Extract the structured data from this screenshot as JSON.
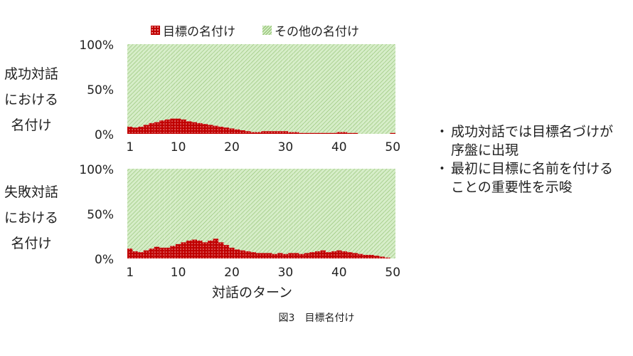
{
  "legend": {
    "goal_label": "目標の名付け",
    "other_label": "その他の名付け"
  },
  "row_labels": {
    "success": [
      "成功対話",
      "における",
      "名付け"
    ],
    "failure": [
      "失敗対話",
      "における",
      "名付け"
    ]
  },
  "notes": [
    [
      "成功対話では目標名づけが",
      "序盤に出現"
    ],
    [
      "最初に目標に名前を付ける",
      "ことの重要性を示唆"
    ]
  ],
  "colors": {
    "goal": "#c00000",
    "goal_dots": "#f0a0a0",
    "other": "#d6edc8",
    "other_hatch": "#8fc06f"
  },
  "caption": "図3　目標名付け",
  "chart_data": [
    {
      "type": "bar",
      "stacked": true,
      "percent": true,
      "x": [
        1,
        2,
        3,
        4,
        5,
        6,
        7,
        8,
        9,
        10,
        11,
        12,
        13,
        14,
        15,
        16,
        17,
        18,
        19,
        20,
        21,
        22,
        23,
        24,
        25,
        26,
        27,
        28,
        29,
        30,
        31,
        32,
        33,
        34,
        35,
        36,
        37,
        38,
        39,
        40,
        41,
        42,
        43,
        44,
        45,
        46,
        47,
        48,
        49,
        50
      ],
      "series": [
        {
          "name": "目標の名付け",
          "values": [
            8,
            7,
            8,
            10,
            12,
            13,
            15,
            16,
            17,
            17,
            16,
            14,
            13,
            12,
            11,
            10,
            9,
            8,
            7,
            6,
            5,
            4,
            3,
            2,
            2,
            3,
            3,
            3,
            3,
            3,
            2,
            2,
            1,
            1,
            1,
            1,
            1,
            1,
            1,
            2,
            2,
            1,
            1,
            0,
            0,
            0,
            0,
            0,
            0,
            1
          ]
        },
        {
          "name": "その他の名付け",
          "values": [
            92,
            93,
            92,
            90,
            88,
            87,
            85,
            84,
            83,
            83,
            84,
            86,
            87,
            88,
            89,
            90,
            91,
            92,
            93,
            94,
            95,
            96,
            97,
            98,
            98,
            97,
            97,
            97,
            97,
            97,
            98,
            98,
            99,
            99,
            99,
            99,
            99,
            99,
            99,
            98,
            98,
            99,
            99,
            100,
            100,
            100,
            100,
            100,
            100,
            99
          ]
        }
      ],
      "ylim": [
        0,
        100
      ],
      "yticks": [
        "100%",
        "50%",
        "0%"
      ],
      "xticks": [
        "1",
        "10",
        "20",
        "30",
        "40",
        "50"
      ],
      "xlabel": "",
      "ylabel": "成功対話における名付け"
    },
    {
      "type": "bar",
      "stacked": true,
      "percent": true,
      "x": [
        1,
        2,
        3,
        4,
        5,
        6,
        7,
        8,
        9,
        10,
        11,
        12,
        13,
        14,
        15,
        16,
        17,
        18,
        19,
        20,
        21,
        22,
        23,
        24,
        25,
        26,
        27,
        28,
        29,
        30,
        31,
        32,
        33,
        34,
        35,
        36,
        37,
        38,
        39,
        40,
        41,
        42,
        43,
        44,
        45,
        46,
        47,
        48,
        49,
        50
      ],
      "series": [
        {
          "name": "目標の名付け",
          "values": [
            11,
            8,
            7,
            9,
            11,
            13,
            12,
            12,
            14,
            16,
            18,
            20,
            21,
            20,
            18,
            20,
            22,
            18,
            15,
            12,
            10,
            9,
            8,
            7,
            6,
            6,
            6,
            5,
            6,
            5,
            6,
            6,
            5,
            6,
            7,
            8,
            9,
            7,
            8,
            9,
            8,
            7,
            6,
            5,
            4,
            4,
            3,
            2,
            1,
            0
          ]
        },
        {
          "name": "その他の名付け",
          "values": [
            89,
            92,
            93,
            91,
            89,
            87,
            88,
            88,
            86,
            84,
            82,
            80,
            79,
            80,
            82,
            80,
            78,
            82,
            85,
            88,
            90,
            91,
            92,
            93,
            94,
            94,
            94,
            95,
            94,
            95,
            94,
            94,
            95,
            94,
            93,
            92,
            91,
            93,
            92,
            91,
            92,
            93,
            94,
            95,
            96,
            96,
            97,
            98,
            99,
            100
          ]
        }
      ],
      "ylim": [
        0,
        100
      ],
      "yticks": [
        "100%",
        "50%",
        "0%"
      ],
      "xticks": [
        "1",
        "10",
        "20",
        "30",
        "40",
        "50"
      ],
      "xlabel": "対話のターン",
      "ylabel": "失敗対話における名付け"
    }
  ]
}
